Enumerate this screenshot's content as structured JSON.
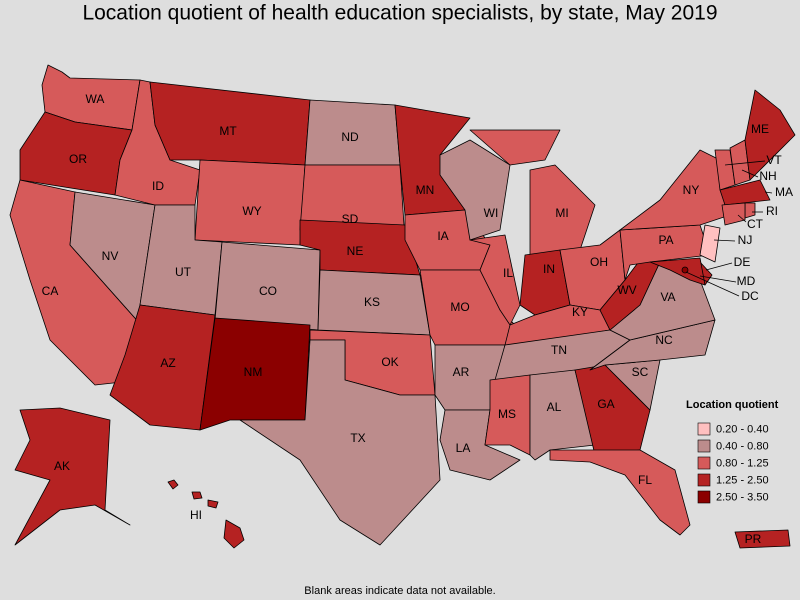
{
  "title": "Location quotient of health education specialists, by state, May 2019",
  "states": [
    {
      "name": "WA",
      "class": 2
    },
    {
      "name": "OR",
      "class": 3
    },
    {
      "name": "CA",
      "class": 2
    },
    {
      "name": "NV",
      "class": 1
    },
    {
      "name": "ID",
      "class": 2
    },
    {
      "name": "MT",
      "class": 3
    },
    {
      "name": "WY",
      "class": 2
    },
    {
      "name": "UT",
      "class": 1
    },
    {
      "name": "CO",
      "class": 1
    },
    {
      "name": "AZ",
      "class": 3
    },
    {
      "name": "NM",
      "class": 4
    },
    {
      "name": "ND",
      "class": 1
    },
    {
      "name": "SD",
      "class": 2
    },
    {
      "name": "NE",
      "class": 3
    },
    {
      "name": "KS",
      "class": 1
    },
    {
      "name": "OK",
      "class": 2
    },
    {
      "name": "TX",
      "class": 1
    },
    {
      "name": "MN",
      "class": 3
    },
    {
      "name": "IA",
      "class": 2
    },
    {
      "name": "MO",
      "class": 2
    },
    {
      "name": "AR",
      "class": 1
    },
    {
      "name": "LA",
      "class": 1
    },
    {
      "name": "WI",
      "class": 1
    },
    {
      "name": "IL",
      "class": 2
    },
    {
      "name": "MI",
      "class": 2
    },
    {
      "name": "IN",
      "class": 3
    },
    {
      "name": "OH",
      "class": 2
    },
    {
      "name": "KY",
      "class": 2
    },
    {
      "name": "TN",
      "class": 1
    },
    {
      "name": "MS",
      "class": 2
    },
    {
      "name": "AL",
      "class": 1
    },
    {
      "name": "GA",
      "class": 3
    },
    {
      "name": "FL",
      "class": 2
    },
    {
      "name": "SC",
      "class": 1
    },
    {
      "name": "NC",
      "class": 1
    },
    {
      "name": "VA",
      "class": 1
    },
    {
      "name": "WV",
      "class": 3
    },
    {
      "name": "PA",
      "class": 2
    },
    {
      "name": "NY",
      "class": 2
    },
    {
      "name": "VT",
      "class": 2
    },
    {
      "name": "NH",
      "class": 2
    },
    {
      "name": "ME",
      "class": 3
    },
    {
      "name": "MA",
      "class": 3
    },
    {
      "name": "RI",
      "class": 2
    },
    {
      "name": "CT",
      "class": 2
    },
    {
      "name": "NJ",
      "class": 0
    },
    {
      "name": "DE",
      "class": 3
    },
    {
      "name": "MD",
      "class": 3
    },
    {
      "name": "DC",
      "class": 4
    },
    {
      "name": "AK",
      "class": 3
    },
    {
      "name": "HI",
      "class": 3
    },
    {
      "name": "PR",
      "class": 3
    }
  ],
  "legend": {
    "title": "Location quotient",
    "items": [
      {
        "label": "0.20 - 0.40",
        "color": "#ffc0c0"
      },
      {
        "label": "0.40 - 0.80",
        "color": "#bc8c8c"
      },
      {
        "label": "0.80 - 1.25",
        "color": "#d65a5a"
      },
      {
        "label": "1.25 - 2.50",
        "color": "#b52222"
      },
      {
        "label": "2.50 - 3.50",
        "color": "#8b0000"
      }
    ]
  },
  "footnote": "Blank areas indicate data not available."
}
